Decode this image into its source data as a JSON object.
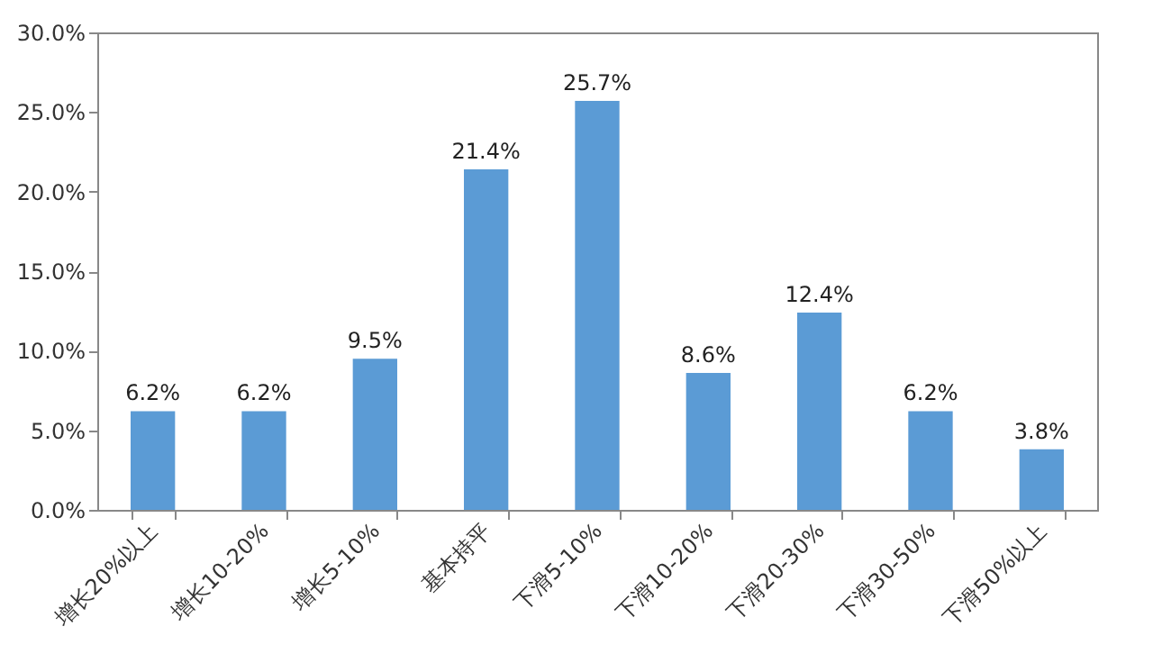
{
  "chart_data": {
    "type": "bar",
    "categories": [
      "增长20%以上",
      "增长10-20%",
      "增长5-10%",
      "基本持平",
      "下滑5-10%",
      "下滑10-20%",
      "下滑20-30%",
      "下滑30-50%",
      "下滑50%以上"
    ],
    "values": [
      6.2,
      6.2,
      9.5,
      21.4,
      25.7,
      8.6,
      12.4,
      6.2,
      3.8
    ],
    "value_labels": [
      "6.2%",
      "6.2%",
      "9.5%",
      "21.4%",
      "25.7%",
      "8.6%",
      "12.4%",
      "6.2%",
      "3.8%"
    ],
    "color": "#5b9bd5",
    "ylim": [
      0,
      30
    ],
    "yticks": [
      {
        "value": 0,
        "label": "0.0%"
      },
      {
        "value": 5,
        "label": "5.0%"
      },
      {
        "value": 10,
        "label": "10.0%"
      },
      {
        "value": 15,
        "label": "15.0%"
      },
      {
        "value": 20,
        "label": "20.0%"
      },
      {
        "value": 25,
        "label": "25.0%"
      },
      {
        "value": 30,
        "label": "30.0%"
      }
    ],
    "grid": false
  }
}
